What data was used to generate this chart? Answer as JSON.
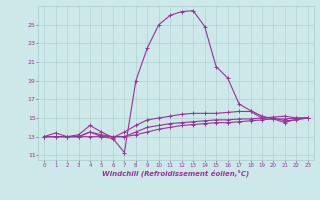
{
  "xlabel": "Windchill (Refroidissement éolien,°C)",
  "bg_color": "#cce8e8",
  "line_color": "#993399",
  "grid_color": "#aacccc",
  "xlim": [
    -0.5,
    23.5
  ],
  "ylim": [
    10.5,
    27.0
  ],
  "yticks": [
    11,
    13,
    15,
    17,
    19,
    21,
    23,
    25
  ],
  "xticks": [
    0,
    1,
    2,
    3,
    4,
    5,
    6,
    7,
    8,
    9,
    10,
    11,
    12,
    13,
    14,
    15,
    16,
    17,
    18,
    19,
    20,
    21,
    22,
    23
  ],
  "lines": [
    [
      13.0,
      13.0,
      13.0,
      13.0,
      13.0,
      13.0,
      13.0,
      13.0,
      13.2,
      13.5,
      13.8,
      14.0,
      14.2,
      14.3,
      14.4,
      14.5,
      14.5,
      14.6,
      14.7,
      14.8,
      14.9,
      14.9,
      15.0,
      15.0
    ],
    [
      13.0,
      13.0,
      13.0,
      13.0,
      13.5,
      13.2,
      13.0,
      13.0,
      13.5,
      14.0,
      14.2,
      14.4,
      14.5,
      14.6,
      14.7,
      14.8,
      14.8,
      14.9,
      14.9,
      15.0,
      15.0,
      14.7,
      14.8,
      15.0
    ],
    [
      13.0,
      13.4,
      13.0,
      13.2,
      14.2,
      13.5,
      12.9,
      13.5,
      14.2,
      14.8,
      15.0,
      15.2,
      15.4,
      15.5,
      15.5,
      15.5,
      15.6,
      15.7,
      15.7,
      15.0,
      15.1,
      15.2,
      15.0,
      15.0
    ],
    [
      13.0,
      13.0,
      13.0,
      13.0,
      13.5,
      13.0,
      12.8,
      11.3,
      19.0,
      22.5,
      25.0,
      26.0,
      26.4,
      26.5,
      24.8,
      20.5,
      19.3,
      16.5,
      15.8,
      15.2,
      14.9,
      14.5,
      14.9,
      15.0
    ]
  ]
}
